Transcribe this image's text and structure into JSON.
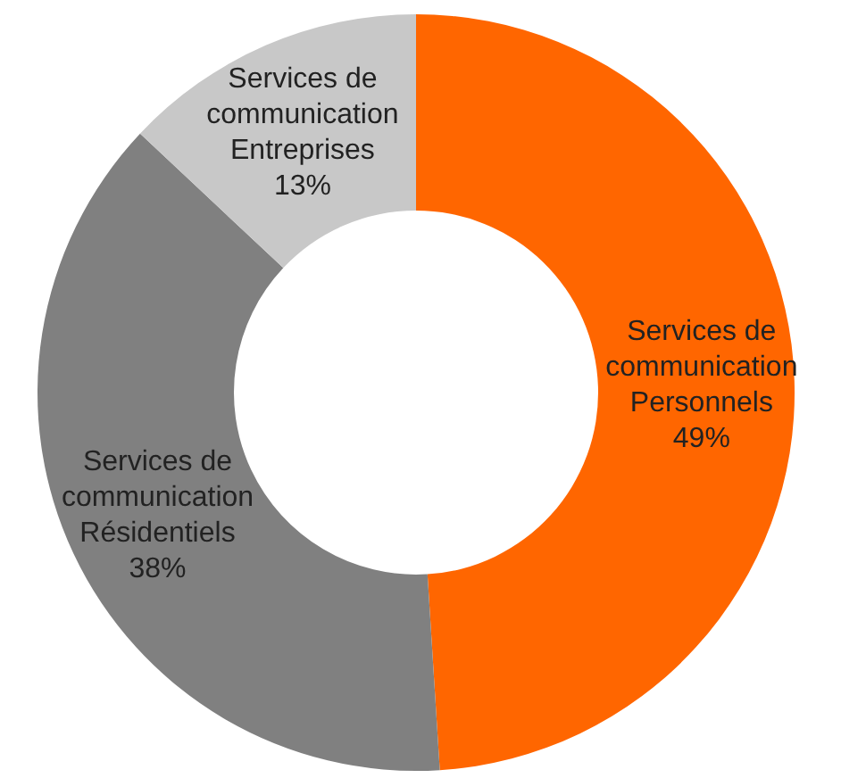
{
  "chart_data": {
    "type": "donut",
    "categories": [
      "Services de\ncommunication\nPersonnels",
      "Services de\ncommunication\nRésidentiels",
      "Services de\ncommunication\nEntreprises"
    ],
    "values": [
      49,
      38,
      13
    ],
    "colors": [
      "#ff6600",
      "#808080",
      "#c8c8c8"
    ],
    "value_labels": [
      "49%",
      "38%",
      "13%"
    ]
  }
}
